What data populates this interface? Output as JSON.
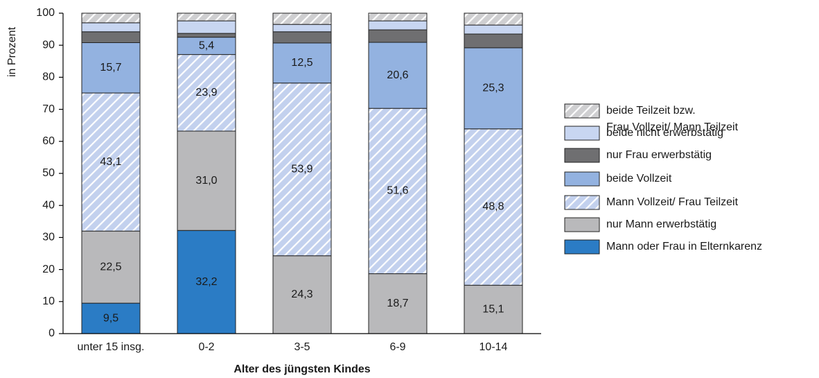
{
  "chart_data": {
    "type": "stacked_bar",
    "xlabel": "Alter des jüngsten Kindes",
    "ylabel": "in Prozent",
    "categories": [
      "unter 15 insg.",
      "0-2",
      "3-5",
      "6-9",
      "10-14"
    ],
    "ylim": [
      0,
      100
    ],
    "yticks": [
      0,
      10,
      20,
      30,
      40,
      50,
      60,
      70,
      80,
      90,
      100
    ],
    "series": [
      {
        "name": "Mann oder Frau in Elternkarenz",
        "color": "#2b7cc5",
        "hatch": false,
        "values": [
          9.5,
          32.2,
          0,
          0,
          0
        ],
        "value_labels": [
          "9,5",
          "32,2",
          null,
          null,
          null
        ]
      },
      {
        "name": "nur Mann erwerbstätig",
        "color": "#b9b9bb",
        "hatch": false,
        "values": [
          22.5,
          31.0,
          24.3,
          18.7,
          15.1
        ],
        "value_labels": [
          "22,5",
          "31,0",
          "24,3",
          "18,7",
          "15,1"
        ]
      },
      {
        "name": "Mann Vollzeit/ Frau Teilzeit",
        "color": "#c3d1ee",
        "hatch": true,
        "values": [
          43.1,
          23.9,
          53.9,
          51.6,
          48.8
        ],
        "value_labels": [
          "43,1",
          "23,9",
          "53,9",
          "51,6",
          "48,8"
        ]
      },
      {
        "name": "beide Vollzeit",
        "color": "#93b2e0",
        "hatch": false,
        "values": [
          15.7,
          5.4,
          12.5,
          20.6,
          25.3
        ],
        "value_labels": [
          "15,7",
          "5,4",
          "12,5",
          "20,6",
          "25,3"
        ]
      },
      {
        "name": "nur Frau erwerbstätig",
        "color": "#6f6f71",
        "hatch": false,
        "values": [
          3.4,
          1.2,
          3.5,
          3.9,
          4.3
        ]
      },
      {
        "name": "beide nicht erwerbstätig",
        "color": "#c8d6f1",
        "hatch": false,
        "values": [
          2.8,
          3.9,
          2.3,
          2.8,
          2.8
        ]
      },
      {
        "name": "beide Teilzeit bzw.\nFrau Vollzeit/ Mann Teilzeit",
        "color": "#cfcfd1",
        "hatch": true,
        "values": [
          3.0,
          2.4,
          3.5,
          2.4,
          3.7
        ]
      }
    ]
  }
}
